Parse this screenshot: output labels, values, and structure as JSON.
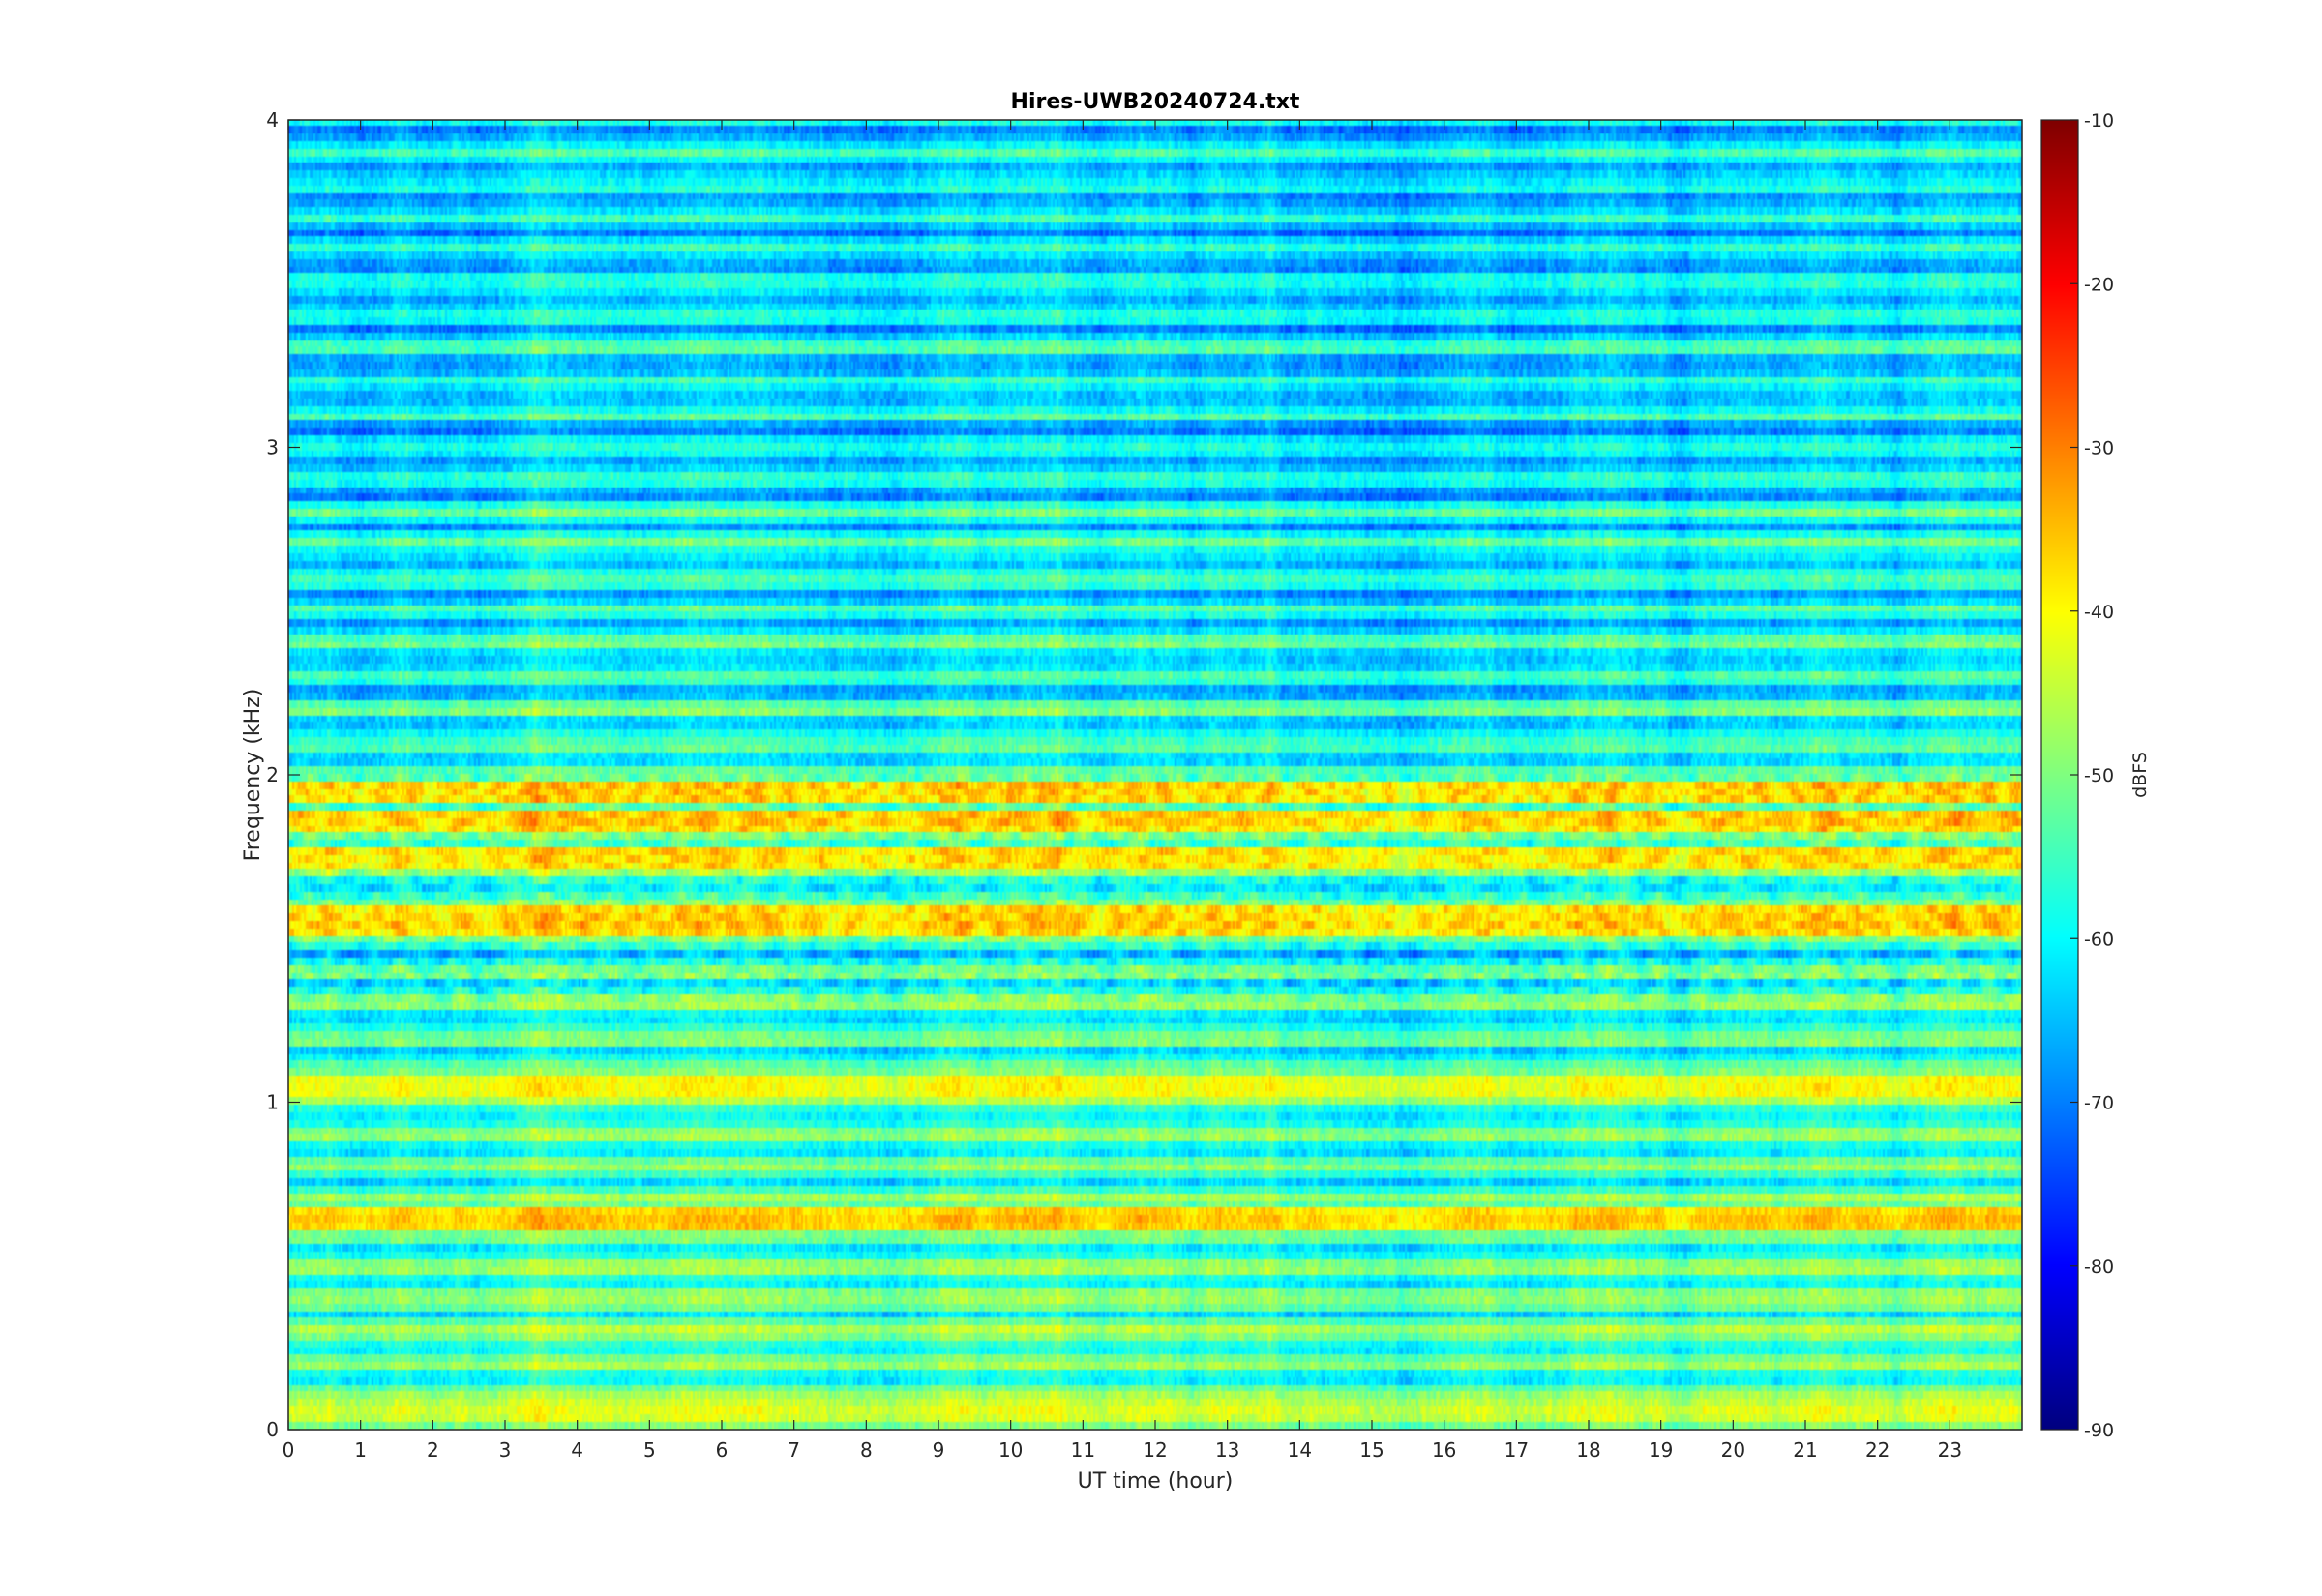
{
  "chart_data": {
    "type": "heatmap",
    "title": "Hires-UWB20240724.txt",
    "xlabel": "UT time (hour)",
    "ylabel": "Frequency (kHz)",
    "xlim": [
      0,
      24
    ],
    "ylim": [
      0,
      4
    ],
    "x_ticks": [
      0,
      1,
      2,
      3,
      4,
      5,
      6,
      7,
      8,
      9,
      10,
      11,
      12,
      13,
      14,
      15,
      16,
      17,
      18,
      19,
      20,
      21,
      22,
      23
    ],
    "y_ticks": [
      0,
      1,
      2,
      3,
      4
    ],
    "colormap": "jet",
    "colorbar": {
      "label": "dBFS",
      "range": [
        -90,
        -10
      ],
      "ticks": [
        -10,
        -20,
        -30,
        -40,
        -50,
        -60,
        -70,
        -80,
        -90
      ]
    },
    "grid": false,
    "strong_bands": [
      {
        "freq_khz": 0.05,
        "level_dbfs": -44
      },
      {
        "freq_khz": 0.65,
        "level_dbfs": -37
      },
      {
        "freq_khz": 1.05,
        "level_dbfs": -41
      },
      {
        "freq_khz": 1.55,
        "level_dbfs": -37
      },
      {
        "freq_khz": 1.75,
        "level_dbfs": -39
      },
      {
        "freq_khz": 1.85,
        "level_dbfs": -37
      },
      {
        "freq_khz": 1.95,
        "level_dbfs": -38
      }
    ],
    "background_level_dbfs": {
      "low_freq": -52,
      "high_freq": -64
    }
  }
}
